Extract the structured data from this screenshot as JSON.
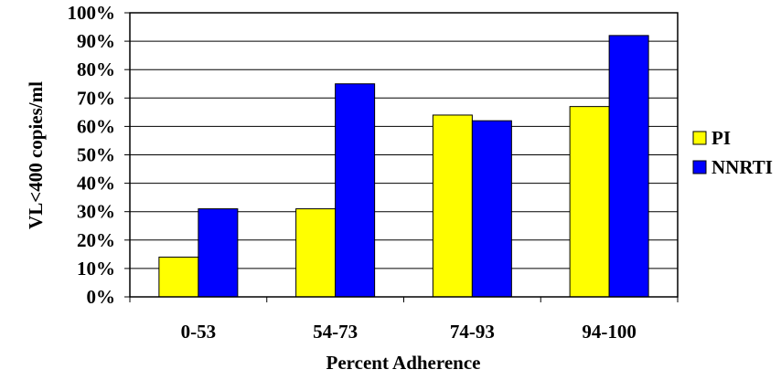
{
  "chart_data": {
    "type": "bar",
    "title": "",
    "xlabel": "Percent Adherence",
    "ylabel": "VL<400 copies/ml",
    "categories": [
      "0-53",
      "54-73",
      "74-93",
      "94-100"
    ],
    "series": [
      {
        "name": "PI",
        "values": [
          14,
          31,
          64,
          67
        ],
        "color": "#ffff00"
      },
      {
        "name": "NNRTI",
        "values": [
          31,
          75,
          62,
          92
        ],
        "color": "#0000ff"
      }
    ],
    "ylim": [
      0,
      100
    ],
    "yticks": [
      0,
      10,
      20,
      30,
      40,
      50,
      60,
      70,
      80,
      90,
      100
    ],
    "ytick_labels": [
      "0%",
      "10%",
      "20%",
      "30%",
      "40%",
      "50%",
      "60%",
      "70%",
      "80%",
      "90%",
      "100%"
    ],
    "grid": true,
    "legend": "right"
  }
}
